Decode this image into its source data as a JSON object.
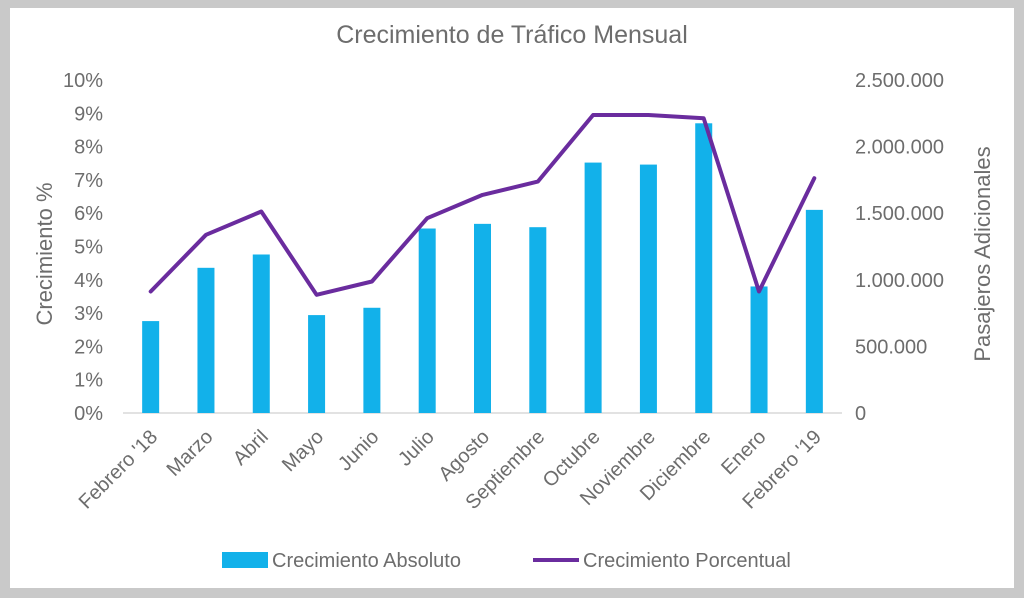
{
  "chart_data": {
    "type": "bar+line",
    "title": "Crecimiento de Tráfico Mensual",
    "categories": [
      "Febrero '18",
      "Marzo",
      "Abril",
      "Mayo",
      "Junio",
      "Julio",
      "Agosto",
      "Septiembre",
      "Octubre",
      "Noviembre",
      "Diciembre",
      "Enero",
      "Febrero '19"
    ],
    "y_left": {
      "label": "Crecimiento %",
      "ylim": [
        0,
        10
      ],
      "ticks": [
        "0%",
        "1%",
        "2%",
        "3%",
        "4%",
        "5%",
        "6%",
        "7%",
        "8%",
        "9%",
        "10%"
      ]
    },
    "y_right": {
      "label": "Pasajeros Adicionales",
      "ylim": [
        0,
        2500000
      ],
      "ticks": [
        "0",
        "500.000",
        "1.000.000",
        "1.500.000",
        "2.000.000",
        "2.500.000"
      ]
    },
    "series": [
      {
        "name": "Crecimiento Absoluto",
        "type": "bar",
        "axis": "right",
        "color": "#12b1ea",
        "values": [
          690000,
          1090000,
          1190000,
          735000,
          790000,
          1385000,
          1420000,
          1395000,
          1880000,
          1865000,
          2175000,
          950000,
          1525000
        ]
      },
      {
        "name": "Crecimiento Porcentual",
        "type": "line",
        "axis": "left",
        "color": "#6a2c9e",
        "values": [
          3.65,
          5.35,
          6.05,
          3.55,
          3.95,
          5.85,
          6.55,
          6.95,
          8.95,
          8.95,
          8.85,
          3.65,
          7.05
        ]
      }
    ],
    "grid": false,
    "legend": "bottom"
  }
}
